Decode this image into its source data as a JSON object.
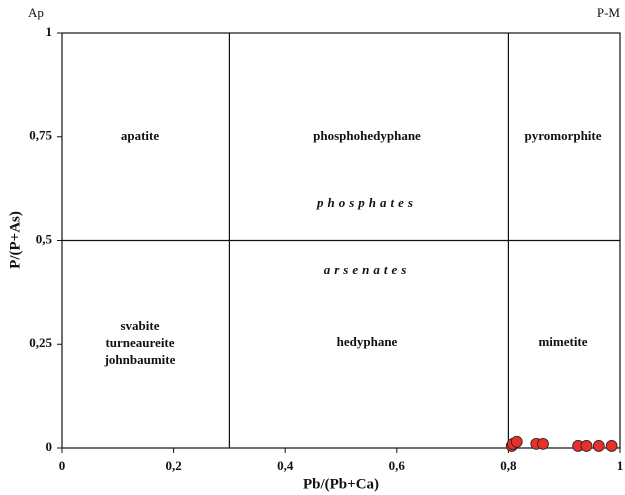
{
  "chart_data": {
    "type": "scatter",
    "xlabel": "Pb/(Pb+Ca)",
    "ylabel": "P/(P+As)",
    "corner_labels": [
      "Ap",
      "P-M"
    ],
    "regions": [
      "apatite",
      "phosphohedyphane",
      "pyromorphite",
      "phosphates",
      "arsenates",
      "svabite",
      "turneaureite",
      "johnbaumite",
      "hedyphane",
      "mimetite"
    ],
    "xlim": [
      0,
      1
    ],
    "ylim": [
      0,
      1
    ],
    "xticks": [
      0,
      {
        "value": 0.2,
        "label": "0,2"
      },
      {
        "value": 0.4,
        "label": "0,4"
      },
      {
        "value": 0.6,
        "label": "0,6"
      },
      {
        "value": 0.8,
        "label": "0,8"
      },
      1
    ],
    "yticks": [
      0,
      {
        "value": 0.25,
        "label": "0,25"
      },
      {
        "value": 0.5,
        "label": "0,5"
      },
      {
        "value": 0.75,
        "label": "0,75"
      },
      1
    ],
    "dividers_x": [
      0.3,
      0.8
    ],
    "dividers_y": [
      0.5
    ],
    "color": "#e8302a",
    "x": [
      0.806,
      0.808,
      0.815,
      0.85,
      0.862,
      0.925,
      0.94,
      0.962,
      0.985
    ],
    "values": [
      0.005,
      0.01,
      0.015,
      0.01,
      0.01,
      0.005,
      0.005,
      0.005,
      0.005
    ]
  }
}
